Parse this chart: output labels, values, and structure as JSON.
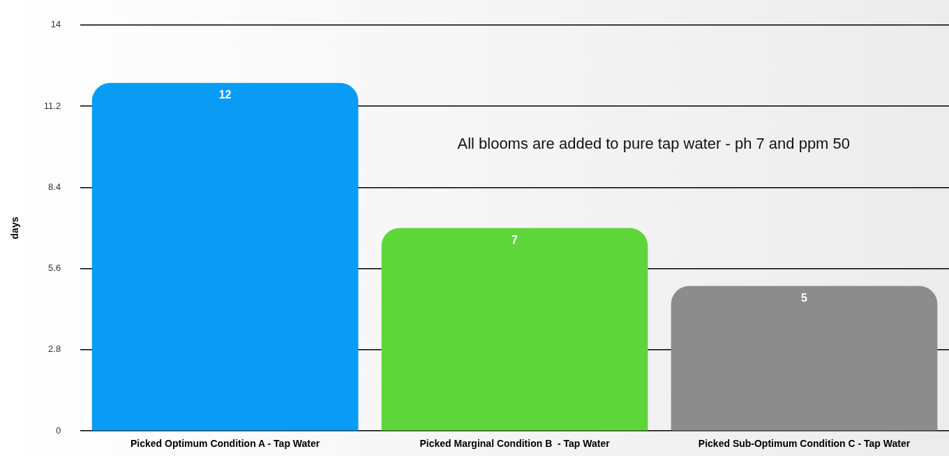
{
  "chart_data": {
    "type": "bar",
    "ylabel": "days",
    "categories": [
      "Picked Optimum Condition A - Tap Water",
      "Picked Marginal Condition B  - Tap Water",
      "Picked Sub-Optimum Condition C - Tap Water"
    ],
    "values": [
      12,
      7,
      5
    ],
    "colors": [
      "#0a9cf5",
      "#5ed63a",
      "#8c8c8c"
    ],
    "ylim": [
      0,
      14
    ],
    "yticks": [
      0,
      2.8,
      5.6,
      8.4,
      11.2,
      14
    ],
    "grid": "y",
    "data_labels": true,
    "legend": false,
    "annotations": [
      "All blooms are added to pure tap water - ph 7 and ppm 50"
    ]
  }
}
